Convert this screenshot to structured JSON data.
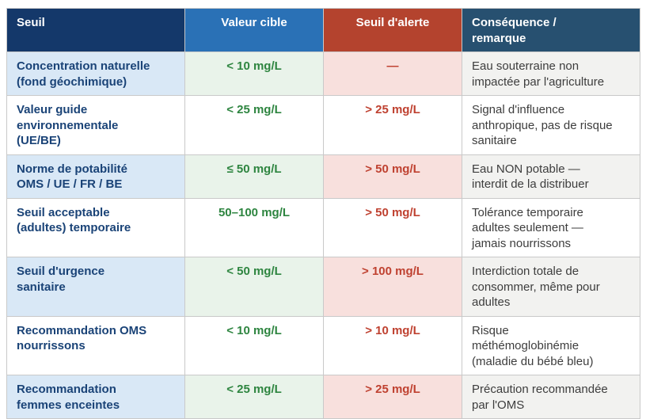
{
  "table": {
    "header": {
      "seuil": "Seuil",
      "valeur_cible": "Valeur cible",
      "seuil_alerte": "Seuil d'alerte",
      "consequence": "Conséquence /\nremarque"
    },
    "rows": [
      {
        "seuil": "Concentration naturelle\n(fond géochimique)",
        "valeur_cible": "< 10 mg/L",
        "seuil_alerte": "—",
        "consequence": "Eau souterraine non\nimpactée par l'agriculture"
      },
      {
        "seuil": "Valeur guide\nenvironnementale\n(UE/BE)",
        "valeur_cible": "< 25 mg/L",
        "seuil_alerte": "> 25 mg/L",
        "consequence": "Signal d'influence\nanthropique, pas de risque\nsanitaire"
      },
      {
        "seuil": "Norme de potabilité\nOMS / UE / FR / BE",
        "valeur_cible": "≤ 50 mg/L",
        "seuil_alerte": "> 50 mg/L",
        "consequence": "Eau NON potable —\ninterdit de la distribuer"
      },
      {
        "seuil": "Seuil acceptable\n(adultes) temporaire",
        "valeur_cible": "50–100 mg/L",
        "seuil_alerte": "> 50 mg/L",
        "consequence": "Tolérance temporaire\nadultes seulement —\njamais nourrissons"
      },
      {
        "seuil": "Seuil d'urgence\nsanitaire",
        "valeur_cible": "< 50 mg/L",
        "seuil_alerte": "> 100 mg/L",
        "consequence": "Interdiction totale de\nconsommer, même pour\nadultes"
      },
      {
        "seuil": "Recommandation OMS\nnourrissons",
        "valeur_cible": "< 10 mg/L",
        "seuil_alerte": "> 10 mg/L",
        "consequence": "Risque\nméthémoglobinémie\n(maladie du bébé bleu)"
      },
      {
        "seuil": "Recommandation\nfemmes enceintes",
        "valeur_cible": "< 25 mg/L",
        "seuil_alerte": "> 25 mg/L",
        "consequence": "Précaution recommandée\npar l'OMS"
      }
    ]
  },
  "colors": {
    "header_seuil_bg": "#14386a",
    "header_cible_bg": "#2a71b6",
    "header_alerte_bg": "#b4432e",
    "header_consequence_bg": "#275070",
    "header_text": "#ffffff",
    "row_tint_blue": "#d9e8f6",
    "row_tint_green": "#e9f3ea",
    "row_tint_pink": "#f8e0dd",
    "row_tint_gray": "#f2f2f0",
    "text_navy": "#1a4377",
    "text_green": "#2e8540",
    "text_red": "#bf4130",
    "text_gray": "#3d3d3d",
    "border": "#c9c9c9"
  }
}
